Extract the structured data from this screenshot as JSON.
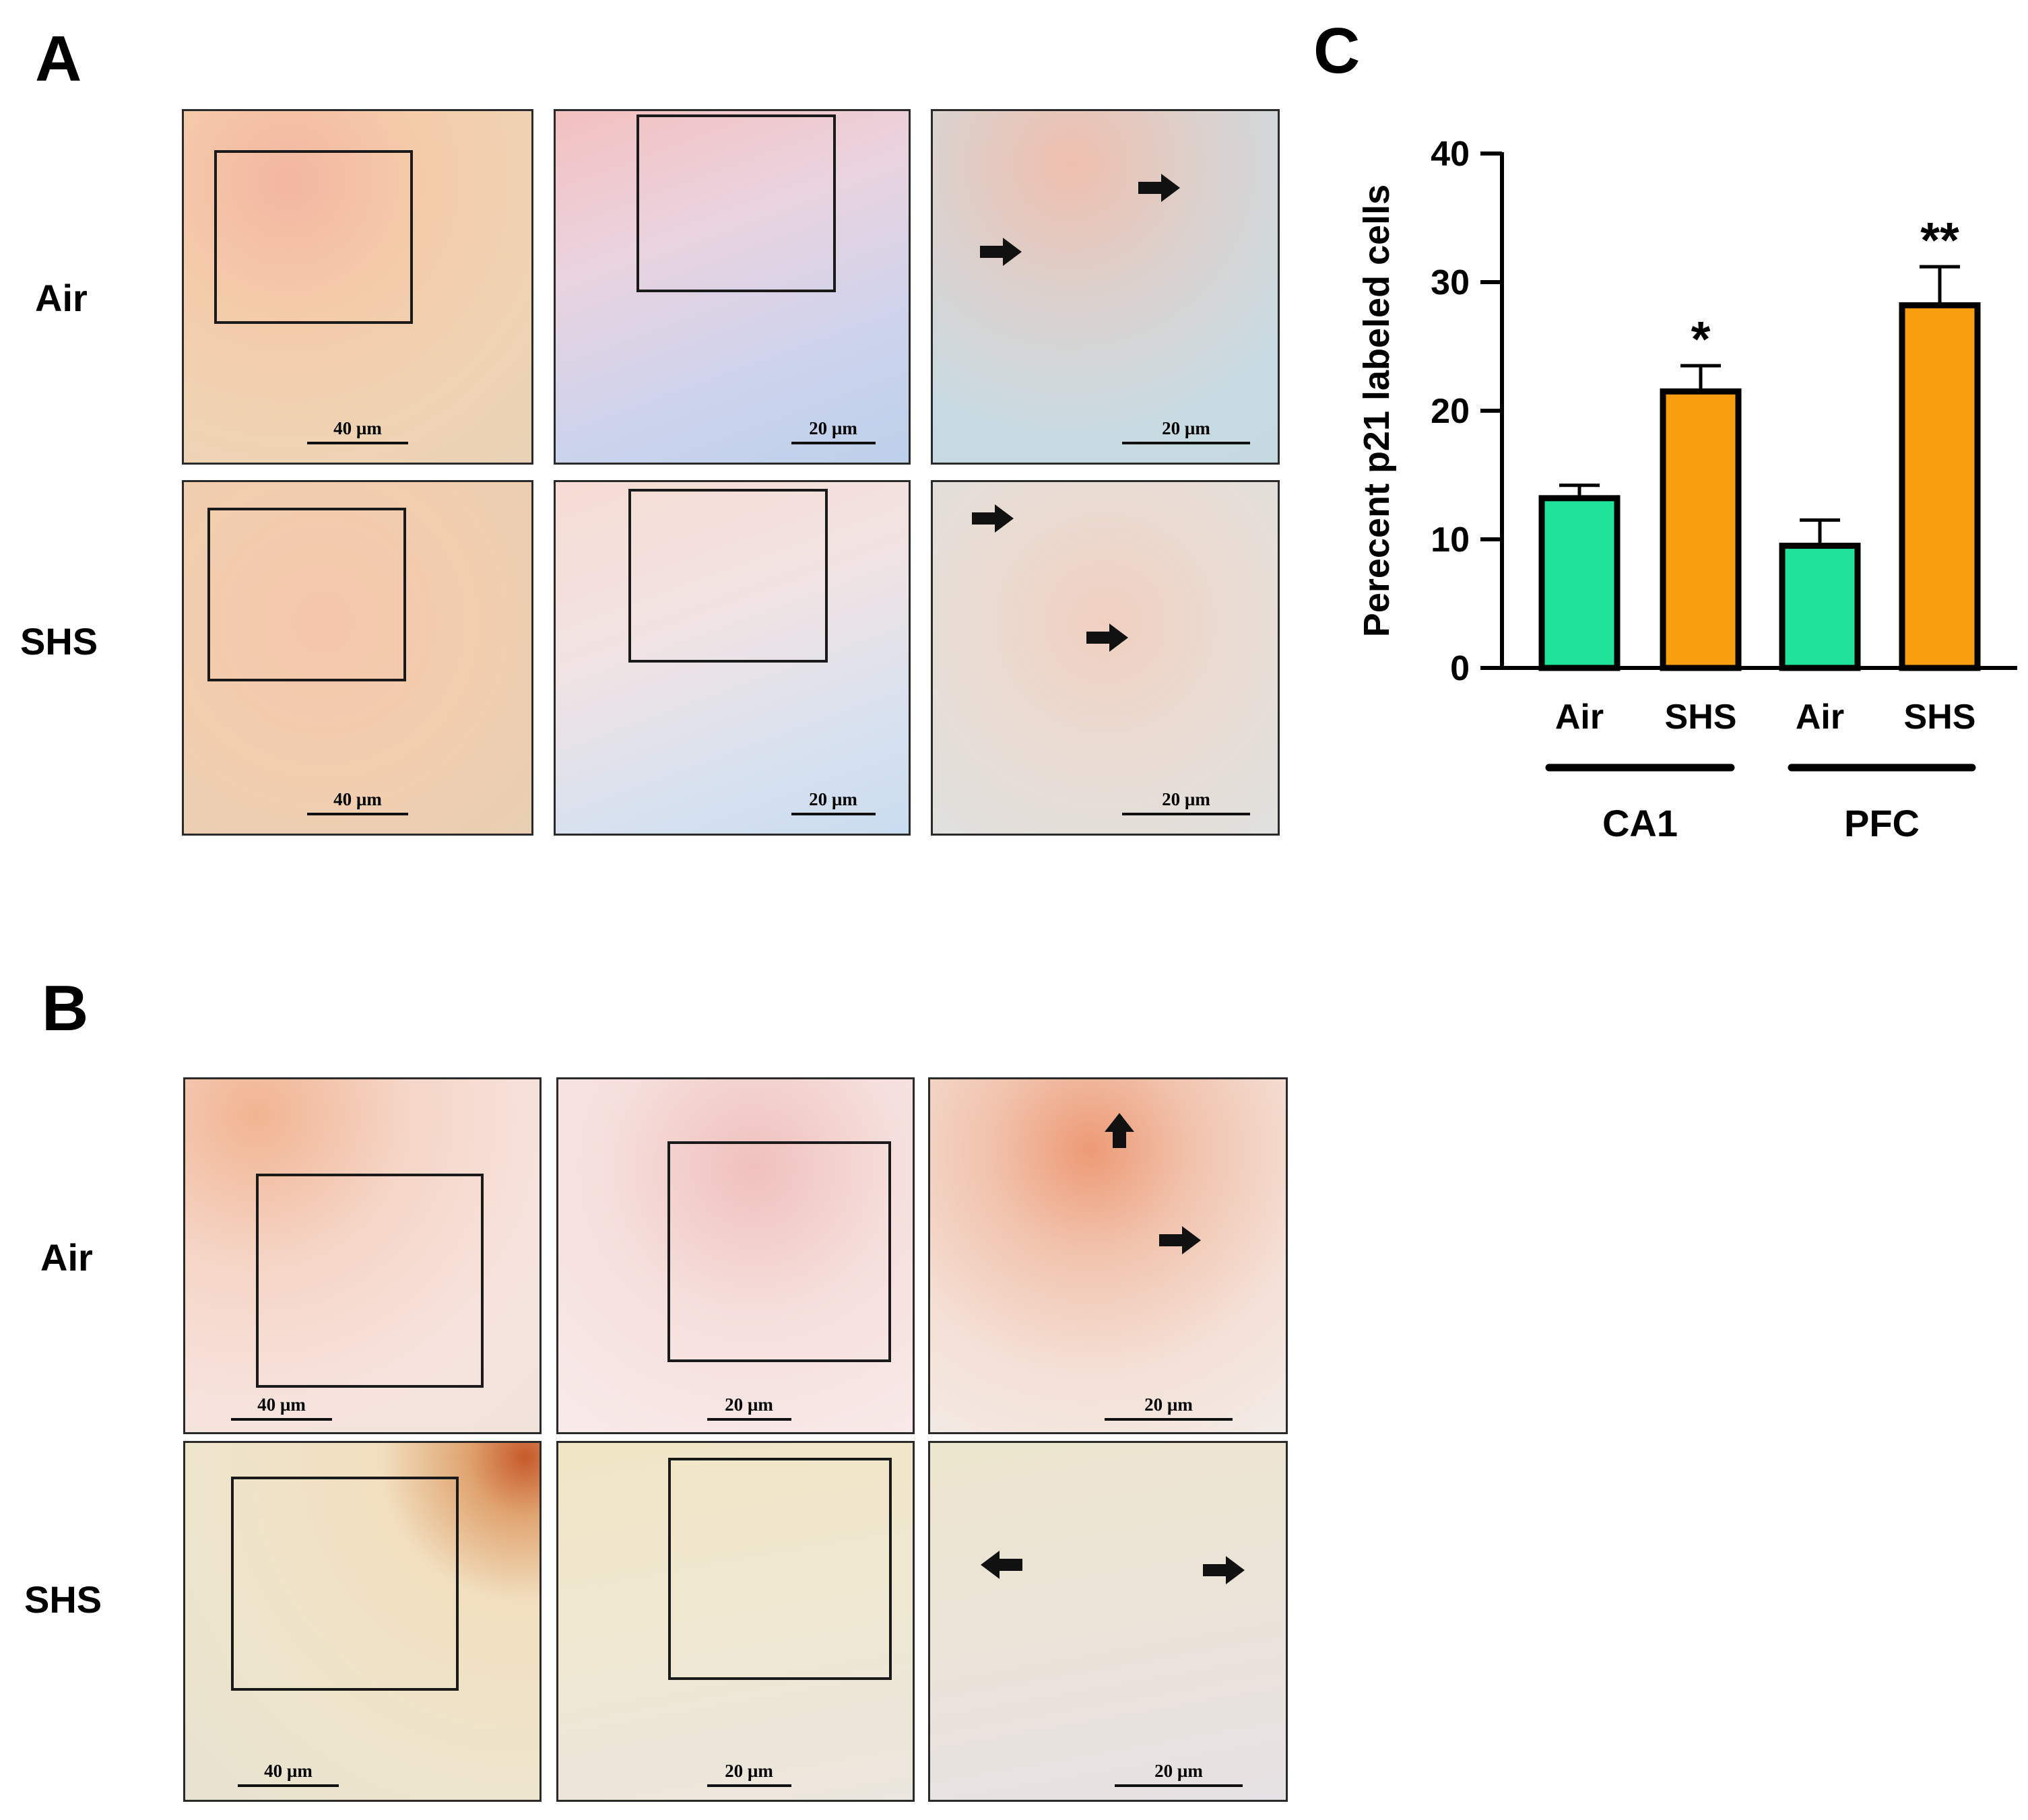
{
  "panels": {
    "A": {
      "letter": "A",
      "rows": [
        {
          "label": "Air",
          "scales": [
            "40 µm",
            "20 µm",
            "20 µm"
          ]
        },
        {
          "label": "SHS",
          "scales": [
            "40 µm",
            "20 µm",
            "20 µm"
          ]
        }
      ]
    },
    "B": {
      "letter": "B",
      "rows": [
        {
          "label": "Air",
          "scales": [
            "40 µm",
            "20 µm",
            "20 µm"
          ]
        },
        {
          "label": "SHS",
          "scales": [
            "40 µm",
            "20 µm",
            "20 µm"
          ]
        }
      ]
    },
    "C": {
      "letter": "C"
    }
  },
  "colors": {
    "air": "#1fe39a",
    "shs": "#f99e0f",
    "axis": "#000000"
  },
  "chart_data": {
    "type": "bar",
    "title": "",
    "xlabel": "",
    "ylabel": "Perecent p21 labeled cells",
    "ylim": [
      0,
      40
    ],
    "yticks": [
      0,
      10,
      20,
      30,
      40
    ],
    "categories": [
      "Air",
      "SHS",
      "Air",
      "SHS"
    ],
    "groups": [
      {
        "name": "CA1",
        "categories": [
          "Air",
          "SHS"
        ]
      },
      {
        "name": "PFC",
        "categories": [
          "Air",
          "SHS"
        ]
      }
    ],
    "values": [
      13.2,
      21.5,
      9.5,
      28.2
    ],
    "errors": [
      1.0,
      2.0,
      2.0,
      3.0
    ],
    "significance": [
      "",
      "*",
      "",
      "**"
    ],
    "bar_colors": [
      "#1fe39a",
      "#f99e0f",
      "#1fe39a",
      "#f99e0f"
    ]
  }
}
